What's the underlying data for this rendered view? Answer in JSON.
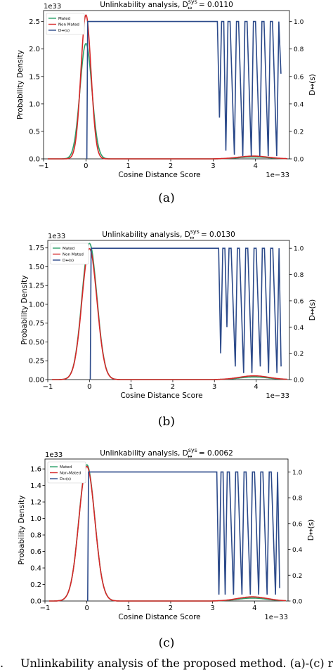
{
  "figure_caption": "Unlinkability analysis of the proposed method. (a)-(c) repr",
  "figure_caption_prefix": ".",
  "chart_data": [
    {
      "type": "line",
      "panel_label": "(a)",
      "title_prefix": "Unlinkability analysis, D",
      "title_sup": "sys",
      "title_sub": "↔",
      "title_value": " = 0.0110",
      "xlabel": "Cosine Distance Score",
      "ylabel": "Probability Density",
      "ylabel_right": "D↔(s)",
      "x_offset_label": "1e−33",
      "y_offset_label": "1e33",
      "xlim": [
        -1,
        4.8
      ],
      "ylim": [
        0,
        2.7
      ],
      "ylim_right": [
        0,
        1.08
      ],
      "x_ticks": [
        -1,
        0,
        1,
        2,
        3,
        4
      ],
      "x_tick_labels": [
        "−1",
        "0",
        "1",
        "2",
        "3",
        "4"
      ],
      "y_ticks": [
        0,
        0.5,
        1.0,
        1.5,
        2.0,
        2.5
      ],
      "y_tick_labels": [
        "0.0",
        "0.5",
        "1.0",
        "1.5",
        "2.0",
        "2.5"
      ],
      "y_ticks_right": [
        0,
        0.2,
        0.4,
        0.6,
        0.8,
        1.0
      ],
      "y_tick_labels_right": [
        "0.0",
        "0.2",
        "0.4",
        "0.6",
        "0.8",
        "1.0"
      ],
      "legend": [
        "Mated",
        "Non Mated",
        "D↔(s)"
      ],
      "legend_placement": "top-left",
      "colors": {
        "mated": "#2ca06a",
        "nonmated": "#d62728",
        "d": "#2c4a8a"
      },
      "series": [
        {
          "name": "Mated",
          "peak_x": 0.0,
          "peak": 2.1,
          "sigma": 0.14
        },
        {
          "name": "Non Mated",
          "peak_x": 0.0,
          "peak": 2.62,
          "sigma": 0.12
        },
        {
          "name": "D↔(s)",
          "axis": "right",
          "x": [
            0.02,
            0.04,
            3.1,
            3.15,
            3.2,
            3.25,
            3.3,
            3.35,
            3.4,
            3.5,
            3.55,
            3.6,
            3.7,
            3.75,
            3.8,
            3.9,
            3.95,
            4.0,
            4.1,
            4.15,
            4.2,
            4.3,
            4.35,
            4.4,
            4.5,
            4.55,
            4.6
          ],
          "y": [
            0,
            1.0,
            1.0,
            0.3,
            1.0,
            1.0,
            0.06,
            1.0,
            1.0,
            0.03,
            1.0,
            1.0,
            0.02,
            1.0,
            1.0,
            0.02,
            1.0,
            1.0,
            0.02,
            1.0,
            1.0,
            0.02,
            1.0,
            1.0,
            0.02,
            1.0,
            0.62
          ]
        }
      ]
    },
    {
      "type": "line",
      "panel_label": "(b)",
      "title_prefix": "Unlinkability analysis, D",
      "title_sup": "sys",
      "title_sub": "↔",
      "title_value": " = 0.0130",
      "xlabel": "Cosine Distance Score",
      "ylabel": "Probability Density",
      "ylabel_right": "D↔(s)",
      "x_offset_label": "1e−33",
      "y_offset_label": "1e33",
      "xlim": [
        -1,
        4.8
      ],
      "ylim": [
        0,
        1.85
      ],
      "ylim_right": [
        0,
        1.06
      ],
      "x_ticks": [
        -1,
        0,
        1,
        2,
        3,
        4
      ],
      "x_tick_labels": [
        "−1",
        "0",
        "1",
        "2",
        "3",
        "4"
      ],
      "y_ticks": [
        0,
        0.25,
        0.5,
        0.75,
        1.0,
        1.25,
        1.5,
        1.75
      ],
      "y_tick_labels": [
        "0.00",
        "0.25",
        "0.50",
        "0.75",
        "1.00",
        "1.25",
        "1.50",
        "1.75"
      ],
      "y_ticks_right": [
        0,
        0.2,
        0.4,
        0.6,
        0.8,
        1.0
      ],
      "y_tick_labels_right": [
        "0.0",
        "0.2",
        "0.4",
        "0.6",
        "0.8",
        "1.0"
      ],
      "legend": [
        "Mated",
        "Non Mated",
        "D↔(s)"
      ],
      "legend_placement": "top-left",
      "colors": {
        "mated": "#2ca06a",
        "nonmated": "#d62728",
        "d": "#2c4a8a"
      },
      "series": [
        {
          "name": "Mated",
          "peak_x": 0.0,
          "peak": 1.81,
          "sigma": 0.18
        },
        {
          "name": "Non Mated",
          "peak_x": 0.0,
          "peak": 1.74,
          "sigma": 0.18
        },
        {
          "name": "D↔(s)",
          "axis": "right",
          "x": [
            0.02,
            0.04,
            3.1,
            3.15,
            3.2,
            3.25,
            3.3,
            3.35,
            3.4,
            3.5,
            3.55,
            3.6,
            3.7,
            3.75,
            3.8,
            3.9,
            3.95,
            4.0,
            4.1,
            4.15,
            4.2,
            4.3,
            4.35,
            4.4,
            4.5,
            4.55,
            4.6
          ],
          "y": [
            0,
            1.0,
            1.0,
            0.2,
            1.0,
            1.0,
            0.4,
            1.0,
            1.0,
            0.1,
            1.0,
            1.0,
            0.05,
            1.0,
            1.0,
            0.05,
            1.0,
            1.0,
            0.1,
            1.0,
            1.0,
            0.05,
            1.0,
            1.0,
            0.05,
            1.0,
            0.1
          ]
        }
      ]
    },
    {
      "type": "line",
      "panel_label": "(c)",
      "title_prefix": "Unlinkability analysis, D",
      "title_sup": "sys",
      "title_sub": "↔",
      "title_value": " = 0.0062",
      "xlabel": "Cosine Distance Score",
      "ylabel": "Probability Density",
      "ylabel_right": "D↔(s)",
      "x_offset_label": "1e−33",
      "y_offset_label": "1e33",
      "xlim": [
        -1,
        4.8
      ],
      "ylim": [
        0,
        1.72
      ],
      "ylim_right": [
        0,
        1.1
      ],
      "x_ticks": [
        -1,
        0,
        1,
        2,
        3,
        4
      ],
      "x_tick_labels": [
        "−1",
        "0",
        "1",
        "2",
        "3",
        "4"
      ],
      "y_ticks": [
        0,
        0.2,
        0.4,
        0.6,
        0.8,
        1.0,
        1.2,
        1.4,
        1.6
      ],
      "y_tick_labels": [
        "0.0",
        "0.2",
        "0.4",
        "0.6",
        "0.8",
        "1.0",
        "1.2",
        "1.4",
        "1.6"
      ],
      "y_ticks_right": [
        0,
        0.2,
        0.4,
        0.6,
        0.8,
        1.0
      ],
      "y_tick_labels_right": [
        "0.0",
        "0.2",
        "0.4",
        "0.6",
        "0.8",
        "1.0"
      ],
      "legend": [
        "Mated",
        "Non-Mated",
        "D↔(s)"
      ],
      "legend_placement": "top-left",
      "colors": {
        "mated": "#2ca06a",
        "nonmated": "#d62728",
        "d": "#2c4a8a"
      },
      "series": [
        {
          "name": "Mated",
          "peak_x": 0.0,
          "peak": 1.65,
          "sigma": 0.19
        },
        {
          "name": "Non-Mated",
          "peak_x": 0.0,
          "peak": 1.63,
          "sigma": 0.19
        },
        {
          "name": "D↔(s)",
          "axis": "right",
          "x": [
            0.02,
            0.04,
            3.1,
            3.15,
            3.2,
            3.25,
            3.3,
            3.35,
            3.4,
            3.5,
            3.55,
            3.6,
            3.7,
            3.75,
            3.8,
            3.9,
            3.95,
            4.0,
            4.1,
            4.15,
            4.2,
            4.3,
            4.35,
            4.4,
            4.5,
            4.55,
            4.6
          ],
          "y": [
            0,
            1.0,
            1.0,
            0.05,
            1.0,
            1.0,
            0.05,
            1.0,
            1.0,
            0.05,
            1.0,
            1.0,
            0.05,
            1.0,
            1.0,
            0.05,
            1.0,
            1.0,
            0.05,
            1.0,
            1.0,
            0.05,
            1.0,
            1.0,
            0.05,
            1.0,
            0.1
          ]
        }
      ]
    }
  ]
}
